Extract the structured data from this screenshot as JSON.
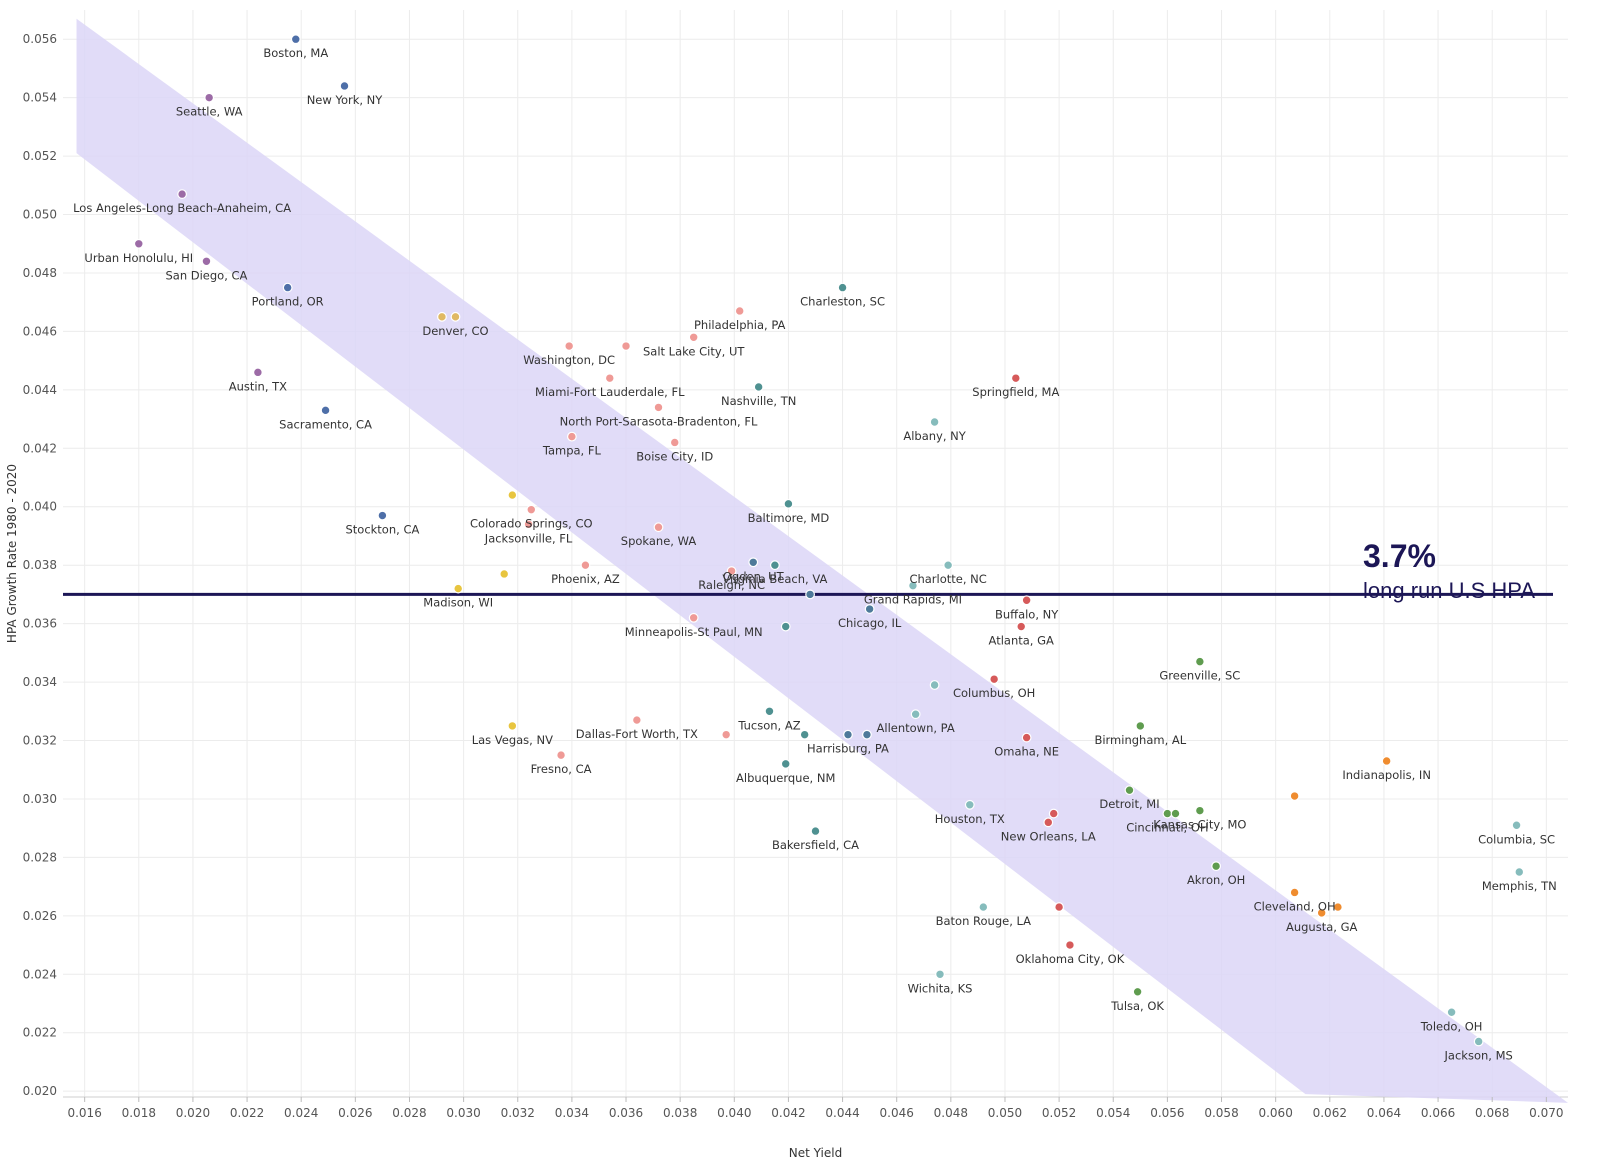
{
  "chart_data": {
    "type": "scatter",
    "xlabel": "Net Yield",
    "ylabel": "HPA Growth Rate 1980 - 2020",
    "xlim": [
      0.0152,
      0.0708
    ],
    "ylim": [
      0.0198,
      0.057
    ],
    "x_ticks": [
      "0.016",
      "0.018",
      "0.020",
      "0.022",
      "0.024",
      "0.026",
      "0.028",
      "0.030",
      "0.032",
      "0.034",
      "0.036",
      "0.038",
      "0.040",
      "0.042",
      "0.044",
      "0.046",
      "0.048",
      "0.050",
      "0.052",
      "0.054",
      "0.056",
      "0.058",
      "0.060",
      "0.062",
      "0.064",
      "0.066",
      "0.068",
      "0.070"
    ],
    "y_ticks": [
      "0.020",
      "0.022",
      "0.024",
      "0.026",
      "0.028",
      "0.030",
      "0.032",
      "0.034",
      "0.036",
      "0.038",
      "0.040",
      "0.042",
      "0.044",
      "0.046",
      "0.048",
      "0.050",
      "0.052",
      "0.054",
      "0.056"
    ],
    "grid": true,
    "reference_line": {
      "y": 0.037,
      "color": "#1c1656"
    },
    "annotation": {
      "value": "3.7%",
      "text": "long run U.S HPA"
    },
    "band": {
      "color": "#dcd6f7",
      "polygon": [
        [
          0.0157,
          0.0567
        ],
        [
          0.0708,
          0.0196
        ],
        [
          0.0611,
          0.0199
        ],
        [
          0.0157,
          0.0521
        ]
      ]
    },
    "points": [
      {
        "label": "Boston, MA",
        "x": 0.0238,
        "y": 0.056,
        "color": "#4e6fa8"
      },
      {
        "label": "New York, NY",
        "x": 0.0256,
        "y": 0.0544,
        "color": "#4e6fa8"
      },
      {
        "label": "Seattle, WA",
        "x": 0.0206,
        "y": 0.054,
        "color": "#9c6ba6"
      },
      {
        "label": "Los Angeles-Long Beach-Anaheim, CA",
        "x": 0.0196,
        "y": 0.0507,
        "color": "#9c6ba6"
      },
      {
        "label": "Urban Honolulu, HI",
        "x": 0.018,
        "y": 0.049,
        "color": "#9c6ba6"
      },
      {
        "label": "San Diego, CA",
        "x": 0.0205,
        "y": 0.0484,
        "color": "#9c6ba6"
      },
      {
        "label": "Portland, OR",
        "x": 0.0235,
        "y": 0.0475,
        "color": "#4e6fa8"
      },
      {
        "label": "",
        "x": 0.0292,
        "y": 0.0465,
        "color": "#e0b963"
      },
      {
        "label": "Denver, CO",
        "x": 0.0297,
        "y": 0.0465,
        "color": "#e0b963"
      },
      {
        "label": "Washington, DC",
        "x": 0.0339,
        "y": 0.0455,
        "color": "#ef9a96"
      },
      {
        "label": "",
        "x": 0.036,
        "y": 0.0455,
        "color": "#ef9a96"
      },
      {
        "label": "Salt Lake City, UT",
        "x": 0.0385,
        "y": 0.0458,
        "color": "#ef9a96"
      },
      {
        "label": "Philadelphia, PA",
        "x": 0.0402,
        "y": 0.0467,
        "color": "#ef9a96"
      },
      {
        "label": "Charleston, SC",
        "x": 0.044,
        "y": 0.0475,
        "color": "#4f9191"
      },
      {
        "label": "Austin, TX",
        "x": 0.0224,
        "y": 0.0446,
        "color": "#9c6ba6"
      },
      {
        "label": "Sacramento, CA",
        "x": 0.0249,
        "y": 0.0433,
        "color": "#4e6fa8"
      },
      {
        "label": "Miami-Fort Lauderdale, FL",
        "x": 0.0354,
        "y": 0.0444,
        "color": "#ef9a96"
      },
      {
        "label": "Nashville, TN",
        "x": 0.0409,
        "y": 0.0441,
        "color": "#4f9191"
      },
      {
        "label": "Springfield, MA",
        "x": 0.0504,
        "y": 0.0444,
        "color": "#d65a5a"
      },
      {
        "label": "North Port-Sarasota-Bradenton, FL",
        "x": 0.0372,
        "y": 0.0434,
        "color": "#ef9a96"
      },
      {
        "label": "Albany, NY",
        "x": 0.0474,
        "y": 0.0429,
        "color": "#86bcbc"
      },
      {
        "label": "Tampa, FL",
        "x": 0.034,
        "y": 0.0424,
        "color": "#ef9a96"
      },
      {
        "label": "Boise City, ID",
        "x": 0.0378,
        "y": 0.0422,
        "color": "#ef9a96"
      },
      {
        "label": "",
        "x": 0.0318,
        "y": 0.0404,
        "color": "#e8c53f"
      },
      {
        "label": "Colorado Springs, CO",
        "x": 0.0325,
        "y": 0.0399,
        "color": "#ef9a96"
      },
      {
        "label": "Stockton, CA",
        "x": 0.027,
        "y": 0.0397,
        "color": "#4e6fa8"
      },
      {
        "label": "Baltimore, MD",
        "x": 0.042,
        "y": 0.0401,
        "color": "#4f9191"
      },
      {
        "label": "Jacksonville, FL",
        "x": 0.0324,
        "y": 0.0394,
        "color": "#ef9a96"
      },
      {
        "label": "Spokane, WA",
        "x": 0.0372,
        "y": 0.0393,
        "color": "#ef9a96"
      },
      {
        "label": "Ogden, UT",
        "x": 0.0407,
        "y": 0.0381,
        "color": "#4e7a9a"
      },
      {
        "label": "Virginia Beach, VA",
        "x": 0.0415,
        "y": 0.038,
        "color": "#4f9191"
      },
      {
        "label": "Charlotte, NC",
        "x": 0.0479,
        "y": 0.038,
        "color": "#86bcbc"
      },
      {
        "label": "Phoenix, AZ",
        "x": 0.0345,
        "y": 0.038,
        "color": "#ef9a96"
      },
      {
        "label": "Raleigh, NC",
        "x": 0.0399,
        "y": 0.0378,
        "color": "#ef9a96"
      },
      {
        "label": "",
        "x": 0.0315,
        "y": 0.0377,
        "color": "#e8c53f"
      },
      {
        "label": "Madison, WI",
        "x": 0.0298,
        "y": 0.0372,
        "color": "#e8c53f"
      },
      {
        "label": "Grand Rapids, MI",
        "x": 0.0466,
        "y": 0.0373,
        "color": "#86bcbc"
      },
      {
        "label": "",
        "x": 0.0428,
        "y": 0.037,
        "color": "#4e7a9a"
      },
      {
        "label": "Buffalo, NY",
        "x": 0.0508,
        "y": 0.0368,
        "color": "#d65a5a"
      },
      {
        "label": "Chicago, IL",
        "x": 0.045,
        "y": 0.0365,
        "color": "#4e7a9a"
      },
      {
        "label": "Minneapolis-St Paul, MN",
        "x": 0.0385,
        "y": 0.0362,
        "color": "#ef9a96"
      },
      {
        "label": "",
        "x": 0.0419,
        "y": 0.0359,
        "color": "#4f9191"
      },
      {
        "label": "Atlanta, GA",
        "x": 0.0506,
        "y": 0.0359,
        "color": "#d65a5a"
      },
      {
        "label": "Greenville, SC",
        "x": 0.0572,
        "y": 0.0347,
        "color": "#5f9c4f"
      },
      {
        "label": "Columbus, OH",
        "x": 0.0496,
        "y": 0.0341,
        "color": "#d65a5a"
      },
      {
        "label": "",
        "x": 0.0474,
        "y": 0.0339,
        "color": "#86bcbc"
      },
      {
        "label": "Las Vegas, NV",
        "x": 0.0318,
        "y": 0.0325,
        "color": "#e8c53f"
      },
      {
        "label": "Dallas-Fort Worth, TX",
        "x": 0.0364,
        "y": 0.0327,
        "color": "#ef9a96"
      },
      {
        "label": "",
        "x": 0.0397,
        "y": 0.0322,
        "color": "#ef9a96"
      },
      {
        "label": "Tucson, AZ",
        "x": 0.0413,
        "y": 0.033,
        "color": "#4f9191"
      },
      {
        "label": "",
        "x": 0.0426,
        "y": 0.0322,
        "color": "#4f9191"
      },
      {
        "label": "Harrisburg, PA",
        "x": 0.0442,
        "y": 0.0322,
        "color": "#4e7a9a"
      },
      {
        "label": "",
        "x": 0.0449,
        "y": 0.0322,
        "color": "#4e7a9a"
      },
      {
        "label": "Allentown, PA",
        "x": 0.0467,
        "y": 0.0329,
        "color": "#86bcbc"
      },
      {
        "label": "Omaha, NE",
        "x": 0.0508,
        "y": 0.0321,
        "color": "#d65a5a"
      },
      {
        "label": "Birmingham, AL",
        "x": 0.055,
        "y": 0.0325,
        "color": "#5f9c4f"
      },
      {
        "label": "Fresno, CA",
        "x": 0.0336,
        "y": 0.0315,
        "color": "#ef9a96"
      },
      {
        "label": "Albuquerque, NM",
        "x": 0.0419,
        "y": 0.0312,
        "color": "#4f9191"
      },
      {
        "label": "Indianapolis, IN",
        "x": 0.0641,
        "y": 0.0313,
        "color": "#ef8c2f"
      },
      {
        "label": "",
        "x": 0.0607,
        "y": 0.0301,
        "color": "#ef8c2f"
      },
      {
        "label": "Detroit, MI",
        "x": 0.0546,
        "y": 0.0303,
        "color": "#5f9c4f"
      },
      {
        "label": "Houston, TX",
        "x": 0.0487,
        "y": 0.0298,
        "color": "#86bcbc"
      },
      {
        "label": "",
        "x": 0.0518,
        "y": 0.0295,
        "color": "#d65a5a"
      },
      {
        "label": "New Orleans, LA",
        "x": 0.0516,
        "y": 0.0292,
        "color": "#d65a5a"
      },
      {
        "label": "Cincinnati, OH",
        "x": 0.056,
        "y": 0.0295,
        "color": "#5f9c4f"
      },
      {
        "label": "",
        "x": 0.0563,
        "y": 0.0295,
        "color": "#5f9c4f"
      },
      {
        "label": "Kansas City, MO",
        "x": 0.0572,
        "y": 0.0296,
        "color": "#5f9c4f"
      },
      {
        "label": "Columbia, SC",
        "x": 0.0689,
        "y": 0.0291,
        "color": "#86bcbc"
      },
      {
        "label": "Bakersfield, CA",
        "x": 0.043,
        "y": 0.0289,
        "color": "#4f9191"
      },
      {
        "label": "Akron, OH",
        "x": 0.0578,
        "y": 0.0277,
        "color": "#5f9c4f"
      },
      {
        "label": "Memphis, TN",
        "x": 0.069,
        "y": 0.0275,
        "color": "#86bcbc"
      },
      {
        "label": "Cleveland, OH",
        "x": 0.0607,
        "y": 0.0268,
        "color": "#ef8c2f"
      },
      {
        "label": "",
        "x": 0.0623,
        "y": 0.0263,
        "color": "#ef8c2f"
      },
      {
        "label": "Augusta, GA",
        "x": 0.0617,
        "y": 0.0261,
        "color": "#ef8c2f"
      },
      {
        "label": "Baton Rouge, LA",
        "x": 0.0492,
        "y": 0.0263,
        "color": "#86bcbc"
      },
      {
        "label": "",
        "x": 0.052,
        "y": 0.0263,
        "color": "#d65a5a"
      },
      {
        "label": "Oklahoma City, OK",
        "x": 0.0524,
        "y": 0.025,
        "color": "#d65a5a"
      },
      {
        "label": "Wichita, KS",
        "x": 0.0476,
        "y": 0.024,
        "color": "#86bcbc"
      },
      {
        "label": "Tulsa, OK",
        "x": 0.0549,
        "y": 0.0234,
        "color": "#5f9c4f"
      },
      {
        "label": "Toledo, OH",
        "x": 0.0665,
        "y": 0.0227,
        "color": "#86bcbc"
      },
      {
        "label": "Jackson, MS",
        "x": 0.0675,
        "y": 0.0217,
        "color": "#86bcbc"
      }
    ]
  }
}
